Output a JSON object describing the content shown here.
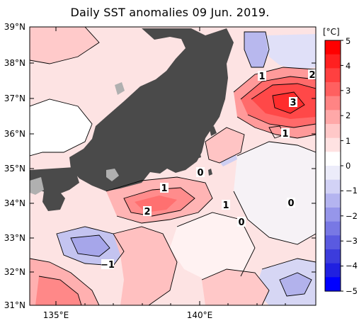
{
  "title": "Daily SST anomalies 09 Jun. 2019.",
  "colorbar": {
    "unit": "[°C]",
    "ticks": [
      "5",
      "4",
      "3",
      "2",
      "1",
      "0",
      "−1",
      "−2",
      "−3",
      "−4",
      "−5"
    ],
    "colors": [
      "#ff0000",
      "#ff2020",
      "#ff4040",
      "#ff6060",
      "#ff8484",
      "#ffa8a8",
      "#ffc8c8",
      "#ffe2e2",
      "#ffffff",
      "#ececfa",
      "#d2d2f6",
      "#b4b4f0",
      "#9696ea",
      "#7878e4",
      "#5a5ae0",
      "#3c3cdc",
      "#2020e0",
      "#0000ff"
    ]
  },
  "axes": {
    "lat_labels": [
      "39°N",
      "38°N",
      "37°N",
      "36°N",
      "35°N",
      "34°N",
      "33°N",
      "32°N",
      "31°N"
    ],
    "lon_labels": [
      "135°E",
      "140°E"
    ]
  },
  "contour_labels": [
    "1",
    "2",
    "3",
    "1",
    "1",
    "2",
    "1",
    "0",
    "0",
    "−1",
    "0"
  ],
  "colors": {
    "land": "#4a4a4a",
    "warm": "#f08080",
    "cool": "#b0b0e8"
  }
}
